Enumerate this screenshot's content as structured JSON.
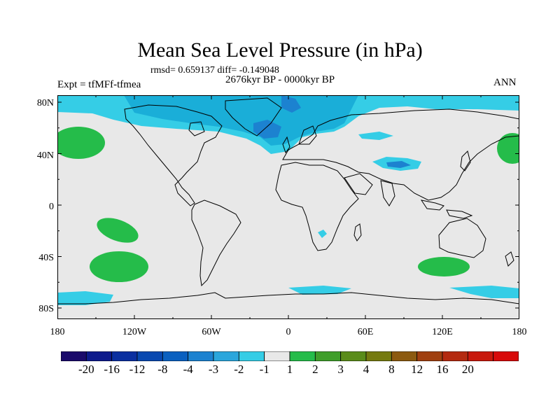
{
  "title": "Mean Sea Level Pressure (in hPa)",
  "stats": "rmsd= 0.659137 diff= -0.149048",
  "period": "2676kyr BP - 0000kyr BP",
  "expt": "Expt = tfMFf-tfmea",
  "season": "ANN",
  "lat_labels": [
    "80N",
    "40N",
    "0",
    "40S",
    "80S"
  ],
  "lon_labels": [
    "180",
    "120W",
    "60W",
    "0",
    "60E",
    "120E",
    "180"
  ],
  "colorbar": {
    "colors": [
      "#1a0a6b",
      "#0d1a8c",
      "#0a2fa0",
      "#0848b0",
      "#0a60c0",
      "#1c82d0",
      "#2aa6dc",
      "#35cde6",
      "#e8e8e8",
      "#25bc4a",
      "#3f9e2a",
      "#5a8c1a",
      "#757a10",
      "#8c5a10",
      "#a04010",
      "#b42a10",
      "#c8180c",
      "#d80a0a"
    ],
    "labels": [
      "-20",
      "-16",
      "-12",
      "-8",
      "-4",
      "-3",
      "-2",
      "-1",
      "1",
      "2",
      "3",
      "4",
      "8",
      "12",
      "16",
      "20"
    ]
  },
  "colors": {
    "background": "#e8e8e8",
    "light_cyan": "#35cde6",
    "cyan": "#1aaed8",
    "blue": "#1c82d0",
    "green": "#25bc4a"
  }
}
